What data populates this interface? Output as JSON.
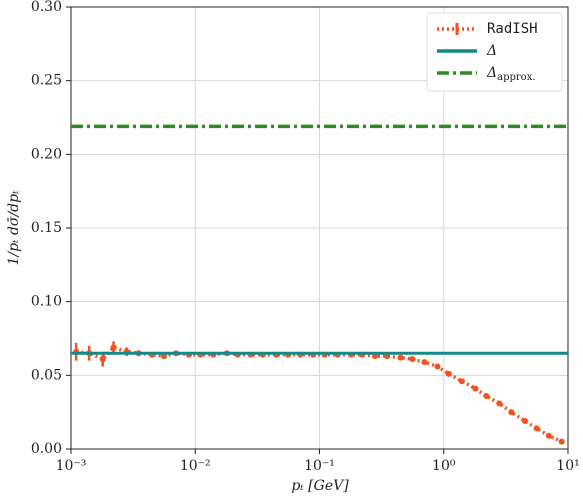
{
  "chart_data": {
    "type": "line",
    "xlabel": "pₜ  [GeV]",
    "ylabel": "1/pₜ dσ̄/dpₜ",
    "xscale": "log",
    "xlim": [
      0.001,
      10
    ],
    "ylim": [
      0,
      0.3
    ],
    "xticks": [
      {
        "value": 0.001,
        "label": "10⁻³"
      },
      {
        "value": 0.01,
        "label": "10⁻²"
      },
      {
        "value": 0.1,
        "label": "10⁻¹"
      },
      {
        "value": 1,
        "label": "10⁰"
      },
      {
        "value": 10,
        "label": "10¹"
      }
    ],
    "yticks": [
      {
        "value": 0,
        "label": "0.00"
      },
      {
        "value": 0.05,
        "label": "0.05"
      },
      {
        "value": 0.1,
        "label": "0.10"
      },
      {
        "value": 0.15,
        "label": "0.15"
      },
      {
        "value": 0.2,
        "label": "0.20"
      },
      {
        "value": 0.25,
        "label": "0.25"
      },
      {
        "value": 0.3,
        "label": "0.30"
      }
    ],
    "grid": true,
    "legend": "upper right",
    "series": [
      {
        "name": "RadISH",
        "color": "#f4511e",
        "style": "dotted",
        "x": [
          0.0011,
          0.0014,
          0.0018,
          0.0022,
          0.0028,
          0.0035,
          0.0045,
          0.0056,
          0.007,
          0.0089,
          0.011,
          0.014,
          0.018,
          0.022,
          0.028,
          0.035,
          0.045,
          0.056,
          0.07,
          0.089,
          0.11,
          0.14,
          0.18,
          0.22,
          0.28,
          0.35,
          0.45,
          0.56,
          0.7,
          0.89,
          1.1,
          1.4,
          1.8,
          2.2,
          2.8,
          3.5,
          4.5,
          5.6,
          7,
          8.9
        ],
        "values": [
          0.066,
          0.065,
          0.061,
          0.069,
          0.066,
          0.065,
          0.064,
          0.063,
          0.065,
          0.064,
          0.064,
          0.064,
          0.065,
          0.064,
          0.064,
          0.064,
          0.064,
          0.064,
          0.064,
          0.064,
          0.064,
          0.064,
          0.064,
          0.064,
          0.063,
          0.063,
          0.062,
          0.061,
          0.059,
          0.056,
          0.051,
          0.046,
          0.041,
          0.036,
          0.031,
          0.025,
          0.019,
          0.014,
          0.009,
          0.005
        ],
        "errors": [
          0.006,
          0.005,
          0.005,
          0.004,
          0.003,
          0.002,
          0.002,
          0.002,
          0.001,
          0.001,
          0.001,
          0.001,
          0.001,
          0.001,
          0.001,
          0.001,
          0.001,
          0.001,
          0.001,
          0.001,
          0.001,
          0.001,
          0.001,
          0.001,
          0.001,
          0.001,
          0.001,
          0.001,
          0.001,
          0.001,
          0.001,
          0.001,
          0.001,
          0.001,
          0.001,
          0.001,
          0.001,
          0.001,
          0.001,
          0.001
        ]
      },
      {
        "name": "Δ",
        "color": "#138a8a",
        "style": "solid",
        "x": [
          0.001,
          10
        ],
        "values": [
          0.065,
          0.065
        ]
      },
      {
        "name": "Δ",
        "name_sub": "approx.",
        "color": "#2e8b22",
        "style": "dashdot",
        "x": [
          0.001,
          10
        ],
        "values": [
          0.219,
          0.219
        ]
      }
    ]
  }
}
